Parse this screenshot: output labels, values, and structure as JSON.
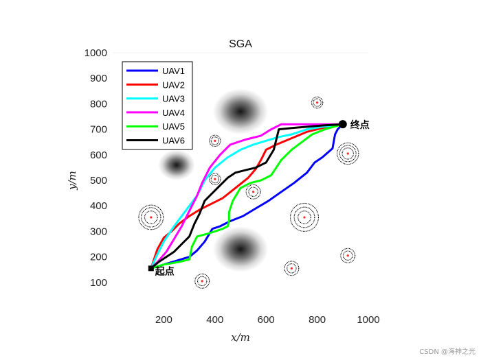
{
  "watermark": "CSDN @海神之光",
  "chart_data": {
    "type": "line",
    "title": "SGA",
    "xlabel": "x/m",
    "ylabel": "y/m",
    "xlim": [
      0,
      1000
    ],
    "ylim": [
      0,
      1000
    ],
    "xticks": [
      200,
      400,
      600,
      800,
      1000
    ],
    "yticks": [
      100,
      200,
      300,
      400,
      500,
      600,
      700,
      800,
      900,
      1000
    ],
    "legend_position": "top-left",
    "start": {
      "label": "起点",
      "x": 150,
      "y": 155
    },
    "end": {
      "label": "终点",
      "x": 900,
      "y": 720
    },
    "terrain_peaks": [
      {
        "x": 500,
        "y": 770,
        "spread": 90
      },
      {
        "x": 500,
        "y": 230,
        "spread": 90
      },
      {
        "x": 250,
        "y": 560,
        "spread": 60
      }
    ],
    "threats": [
      {
        "x": 800,
        "y": 805,
        "rings": [
          15,
          22
        ]
      },
      {
        "x": 400,
        "y": 655,
        "rings": [
          15,
          22
        ]
      },
      {
        "x": 920,
        "y": 605,
        "rings": [
          22,
          32,
          42
        ]
      },
      {
        "x": 400,
        "y": 505,
        "rings": [
          15,
          22
        ]
      },
      {
        "x": 550,
        "y": 455,
        "rings": [
          18,
          28
        ]
      },
      {
        "x": 150,
        "y": 355,
        "rings": [
          25,
          38,
          48
        ]
      },
      {
        "x": 750,
        "y": 355,
        "rings": [
          25,
          40,
          55
        ]
      },
      {
        "x": 920,
        "y": 205,
        "rings": [
          18,
          28
        ]
      },
      {
        "x": 700,
        "y": 155,
        "rings": [
          18,
          28
        ]
      },
      {
        "x": 350,
        "y": 105,
        "rings": [
          18,
          28
        ]
      }
    ],
    "series": [
      {
        "name": "UAV1",
        "color": "#0000ff",
        "points": [
          [
            150,
            155
          ],
          [
            200,
            170
          ],
          [
            250,
            185
          ],
          [
            300,
            200
          ],
          [
            330,
            225
          ],
          [
            360,
            260
          ],
          [
            390,
            310
          ],
          [
            420,
            320
          ],
          [
            460,
            340
          ],
          [
            510,
            360
          ],
          [
            560,
            390
          ],
          [
            610,
            420
          ],
          [
            660,
            455
          ],
          [
            710,
            490
          ],
          [
            760,
            530
          ],
          [
            790,
            570
          ],
          [
            820,
            590
          ],
          [
            860,
            625
          ],
          [
            870,
            680
          ],
          [
            880,
            700
          ],
          [
            900,
            720
          ]
        ]
      },
      {
        "name": "UAV2",
        "color": "#ff0000",
        "points": [
          [
            150,
            155
          ],
          [
            175,
            230
          ],
          [
            200,
            275
          ],
          [
            230,
            300
          ],
          [
            260,
            330
          ],
          [
            300,
            360
          ],
          [
            340,
            385
          ],
          [
            380,
            405
          ],
          [
            430,
            430
          ],
          [
            480,
            470
          ],
          [
            530,
            510
          ],
          [
            560,
            545
          ],
          [
            580,
            580
          ],
          [
            600,
            620
          ],
          [
            640,
            640
          ],
          [
            700,
            665
          ],
          [
            760,
            690
          ],
          [
            820,
            705
          ],
          [
            900,
            720
          ]
        ]
      },
      {
        "name": "UAV3",
        "color": "#00ffff",
        "points": [
          [
            150,
            155
          ],
          [
            170,
            200
          ],
          [
            200,
            260
          ],
          [
            240,
            320
          ],
          [
            270,
            360
          ],
          [
            300,
            400
          ],
          [
            330,
            440
          ],
          [
            360,
            500
          ],
          [
            400,
            550
          ],
          [
            450,
            590
          ],
          [
            500,
            620
          ],
          [
            550,
            640
          ],
          [
            600,
            655
          ],
          [
            650,
            670
          ],
          [
            700,
            680
          ],
          [
            760,
            700
          ],
          [
            820,
            710
          ],
          [
            900,
            720
          ]
        ]
      },
      {
        "name": "UAV4",
        "color": "#ff00ff",
        "points": [
          [
            150,
            155
          ],
          [
            180,
            185
          ],
          [
            210,
            220
          ],
          [
            240,
            270
          ],
          [
            270,
            320
          ],
          [
            300,
            380
          ],
          [
            330,
            440
          ],
          [
            350,
            490
          ],
          [
            380,
            550
          ],
          [
            420,
            600
          ],
          [
            460,
            640
          ],
          [
            520,
            660
          ],
          [
            580,
            675
          ],
          [
            620,
            700
          ],
          [
            660,
            720
          ],
          [
            720,
            720
          ],
          [
            800,
            720
          ],
          [
            900,
            720
          ]
        ]
      },
      {
        "name": "UAV5",
        "color": "#00ff00",
        "points": [
          [
            150,
            155
          ],
          [
            200,
            170
          ],
          [
            260,
            180
          ],
          [
            300,
            190
          ],
          [
            310,
            240
          ],
          [
            330,
            280
          ],
          [
            370,
            290
          ],
          [
            400,
            300
          ],
          [
            430,
            310
          ],
          [
            450,
            320
          ],
          [
            455,
            340
          ],
          [
            455,
            375
          ],
          [
            470,
            420
          ],
          [
            500,
            470
          ],
          [
            540,
            490
          ],
          [
            580,
            500
          ],
          [
            620,
            520
          ],
          [
            660,
            580
          ],
          [
            700,
            620
          ],
          [
            740,
            650
          ],
          [
            780,
            680
          ],
          [
            830,
            700
          ],
          [
            900,
            720
          ]
        ]
      },
      {
        "name": "UAV6",
        "color": "#000000",
        "points": [
          [
            150,
            155
          ],
          [
            180,
            180
          ],
          [
            210,
            200
          ],
          [
            240,
            220
          ],
          [
            270,
            250
          ],
          [
            300,
            280
          ],
          [
            320,
            330
          ],
          [
            340,
            370
          ],
          [
            360,
            420
          ],
          [
            390,
            450
          ],
          [
            420,
            480
          ],
          [
            450,
            510
          ],
          [
            480,
            530
          ],
          [
            520,
            540
          ],
          [
            560,
            550
          ],
          [
            580,
            560
          ],
          [
            600,
            570
          ],
          [
            630,
            620
          ],
          [
            640,
            660
          ],
          [
            650,
            700
          ],
          [
            700,
            705
          ],
          [
            760,
            710
          ],
          [
            820,
            715
          ],
          [
            900,
            720
          ]
        ]
      }
    ]
  }
}
